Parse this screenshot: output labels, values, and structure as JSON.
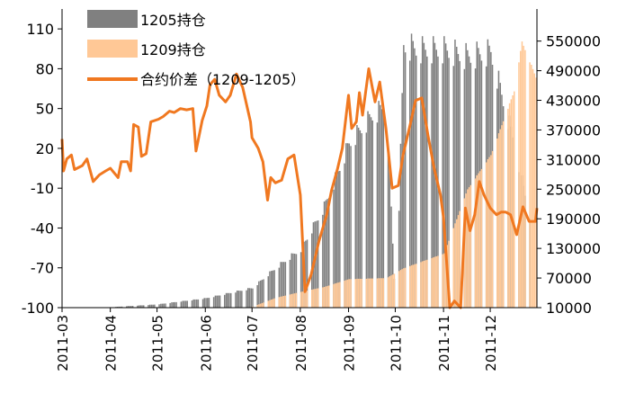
{
  "chart_data": {
    "type": "bar+line",
    "title": "",
    "y_left": {
      "min": -100,
      "max": 125,
      "ticks": [
        110,
        80,
        50,
        20,
        -10,
        -40,
        -70,
        -100
      ],
      "tick_labels": [
        "110",
        "80",
        "50",
        "20",
        "-10",
        "-40",
        "-70",
        "-100"
      ]
    },
    "y_right": {
      "min": 10000,
      "max": 615000,
      "ticks": [
        550000,
        490000,
        430000,
        370000,
        310000,
        250000,
        190000,
        130000,
        70000,
        10000
      ],
      "tick_labels": [
        "550000",
        "490000",
        "430000",
        "370000",
        "310000",
        "250000",
        "190000",
        "130000",
        "70000",
        "10000"
      ]
    },
    "x_ticks": [
      "2011-03",
      "2011-04",
      "2011-05",
      "2011-06",
      "2011-07",
      "2011-08",
      "2011-09",
      "2011-10",
      "2011-11",
      "2011-12"
    ],
    "legend": [
      {
        "label": "1205持仓",
        "color": "#808080"
      },
      {
        "label": "1209持仓",
        "color": "#ffc896"
      },
      {
        "label": "合约价差（1209-1205）",
        "color": "#f07820"
      }
    ],
    "series": [
      {
        "name": "1205持仓",
        "axis": "right",
        "kind": "bar",
        "color": "#808080",
        "points": [
          [
            "2011-03",
            10000
          ],
          [
            "2011-04",
            11000
          ],
          [
            "2011-05",
            17000
          ],
          [
            "2011-06",
            30000
          ],
          [
            "2011-07",
            52000
          ],
          [
            "2011-07-16",
            95000
          ],
          [
            "2011-08",
            135000
          ],
          [
            "2011-08-16",
            225000
          ],
          [
            "2011-09",
            360000
          ],
          [
            "2011-09-16",
            420000
          ],
          [
            "2011-09-25",
            440000
          ],
          [
            "2011-10-01",
            0
          ],
          [
            "2011-10-06",
            570000
          ],
          [
            "2011-10-16",
            560000
          ],
          [
            "2011-11",
            560000
          ],
          [
            "2011-11-16",
            545000
          ],
          [
            "2011-12",
            555000
          ],
          [
            "2011-12-16",
            360000
          ],
          [
            "2011-12-26",
            210000
          ]
        ]
      },
      {
        "name": "1209持仓",
        "axis": "right",
        "kind": "bar",
        "color": "#ffc896",
        "points": [
          [
            "2011-07",
            12000
          ],
          [
            "2011-07-16",
            30000
          ],
          [
            "2011-08",
            42000
          ],
          [
            "2011-08-16",
            52000
          ],
          [
            "2011-09",
            68000
          ],
          [
            "2011-09-25",
            70000
          ],
          [
            "2011-10-06",
            90000
          ],
          [
            "2011-11",
            120000
          ],
          [
            "2011-11-16",
            250000
          ],
          [
            "2011-12",
            320000
          ],
          [
            "2011-12-16",
            450000
          ],
          [
            "2011-12-21",
            550000
          ],
          [
            "2011-12-31",
            470000
          ]
        ]
      },
      {
        "name": "合约价差（1209-1205）",
        "axis": "left",
        "kind": "line",
        "color": "#f07820",
        "points": [
          [
            "2011-03-01",
            27
          ],
          [
            "2011-03-02",
            3
          ],
          [
            "2011-03-04",
            12
          ],
          [
            "2011-03-07",
            15
          ],
          [
            "2011-03-09",
            4
          ],
          [
            "2011-03-14",
            7
          ],
          [
            "2011-03-17",
            12
          ],
          [
            "2011-03-21",
            -5
          ],
          [
            "2011-03-25",
            0
          ],
          [
            "2011-03-29",
            3
          ],
          [
            "2011-04-01",
            5
          ],
          [
            "2011-04-06",
            -2
          ],
          [
            "2011-04-08",
            10
          ],
          [
            "2011-04-12",
            10
          ],
          [
            "2011-04-14",
            3
          ],
          [
            "2011-04-16",
            38
          ],
          [
            "2011-04-19",
            36
          ],
          [
            "2011-04-21",
            14
          ],
          [
            "2011-04-24",
            16
          ],
          [
            "2011-04-27",
            40
          ],
          [
            "2011-05-02",
            42
          ],
          [
            "2011-05-05",
            44
          ],
          [
            "2011-05-09",
            48
          ],
          [
            "2011-05-12",
            47
          ],
          [
            "2011-05-16",
            50
          ],
          [
            "2011-05-20",
            49
          ],
          [
            "2011-05-24",
            50
          ],
          [
            "2011-05-26",
            18
          ],
          [
            "2011-05-30",
            41
          ],
          [
            "2011-06-02",
            52
          ],
          [
            "2011-06-04",
            68
          ],
          [
            "2011-06-07",
            72
          ],
          [
            "2011-06-10",
            60
          ],
          [
            "2011-06-14",
            55
          ],
          [
            "2011-06-17",
            60
          ],
          [
            "2011-06-21",
            76
          ],
          [
            "2011-06-25",
            66
          ],
          [
            "2011-06-30",
            40
          ],
          [
            "2011-07-01",
            28
          ],
          [
            "2011-07-05",
            20
          ],
          [
            "2011-07-08",
            10
          ],
          [
            "2011-07-11",
            -19
          ],
          [
            "2011-07-13",
            -2
          ],
          [
            "2011-07-16",
            -6
          ],
          [
            "2011-07-20",
            -4
          ],
          [
            "2011-07-24",
            12
          ],
          [
            "2011-07-28",
            15
          ],
          [
            "2011-08-01",
            -15
          ],
          [
            "2011-08-04",
            -88
          ],
          [
            "2011-08-08",
            -75
          ],
          [
            "2011-08-13",
            -50
          ],
          [
            "2011-08-18",
            -30
          ],
          [
            "2011-08-21",
            -12
          ],
          [
            "2011-08-25",
            5
          ],
          [
            "2011-08-28",
            20
          ],
          [
            "2011-09-01",
            60
          ],
          [
            "2011-09-03",
            35
          ],
          [
            "2011-09-06",
            40
          ],
          [
            "2011-09-08",
            62
          ],
          [
            "2011-09-10",
            45
          ],
          [
            "2011-09-14",
            80
          ],
          [
            "2011-09-18",
            55
          ],
          [
            "2011-09-21",
            70
          ],
          [
            "2011-09-25",
            35
          ],
          [
            "2011-09-29",
            -10
          ],
          [
            "2011-10-03",
            -8
          ],
          [
            "2011-10-06",
            15
          ],
          [
            "2011-10-11",
            40
          ],
          [
            "2011-10-14",
            56
          ],
          [
            "2011-10-18",
            58
          ],
          [
            "2011-10-22",
            30
          ],
          [
            "2011-10-26",
            5
          ],
          [
            "2011-10-30",
            -15
          ],
          [
            "2011-11-01",
            -32
          ],
          [
            "2011-11-05",
            -100
          ],
          [
            "2011-11-08",
            -95
          ],
          [
            "2011-11-12",
            -100
          ],
          [
            "2011-11-15",
            -25
          ],
          [
            "2011-11-18",
            -42
          ],
          [
            "2011-11-21",
            -30
          ],
          [
            "2011-11-24",
            -5
          ],
          [
            "2011-11-27",
            -15
          ],
          [
            "2011-12-01",
            -25
          ],
          [
            "2011-12-05",
            -30
          ],
          [
            "2011-12-08",
            -28
          ],
          [
            "2011-12-11",
            -28
          ],
          [
            "2011-12-14",
            -30
          ],
          [
            "2011-12-18",
            -45
          ],
          [
            "2011-12-22",
            -24
          ],
          [
            "2011-12-26",
            -35
          ],
          [
            "2011-12-30",
            -35
          ],
          [
            "2011-12-31",
            -25
          ]
        ]
      }
    ]
  }
}
